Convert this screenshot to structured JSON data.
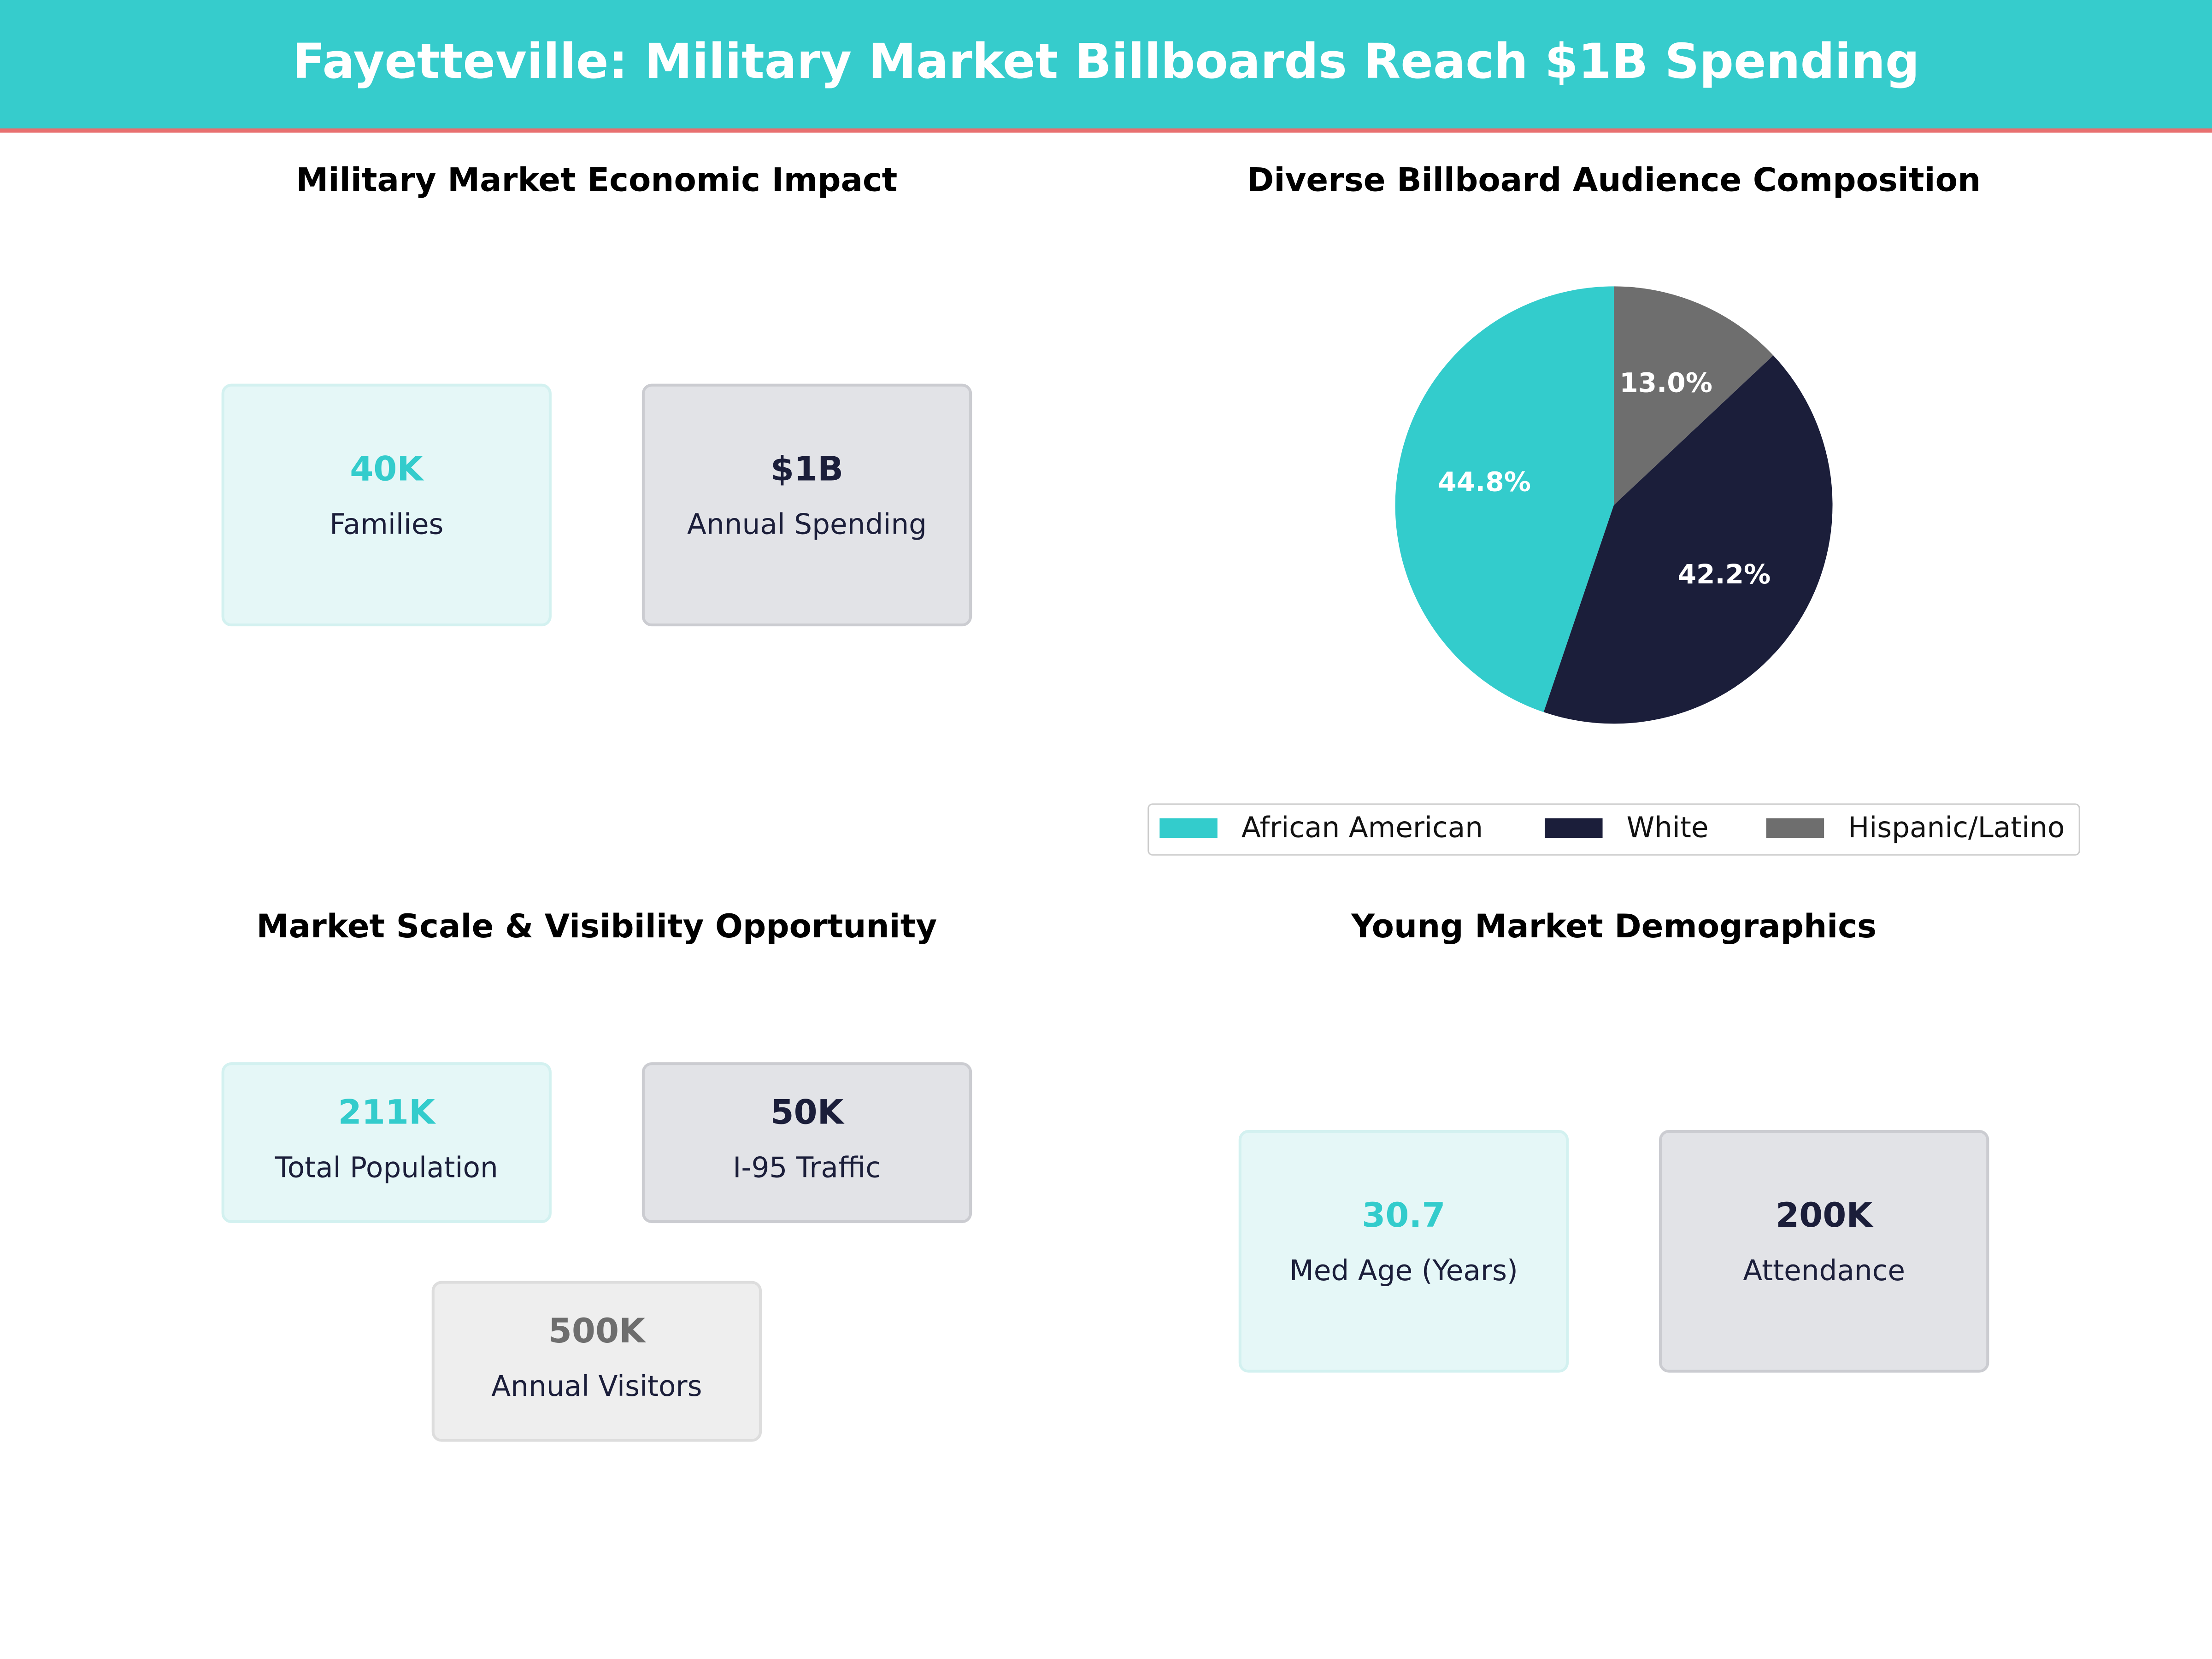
{
  "title": "Fayetteville: Military Market Billboards Reach $1B Spending",
  "chart_data": [
    {
      "type": "kpi",
      "title": "Military Market Economic Impact",
      "cards": [
        {
          "value": "40K",
          "label": "Families"
        },
        {
          "value": "$1B",
          "label": "Annual Spending"
        }
      ]
    },
    {
      "type": "pie",
      "title": "Diverse Billboard Audience Composition",
      "categories": [
        "African American",
        "White",
        "Hispanic/Latino"
      ],
      "values": [
        44.8,
        42.2,
        13.0
      ],
      "value_labels": [
        "44.8%",
        "42.2%",
        "13.0%"
      ],
      "colors": [
        "#33cccc",
        "#1b1e3a",
        "#6e6e6e"
      ],
      "legend": "bottom"
    },
    {
      "type": "kpi",
      "title": "Market Scale & Visibility Opportunity",
      "cards": [
        {
          "value": "211K",
          "label": "Total Population"
        },
        {
          "value": "50K",
          "label": "I-95 Traffic"
        },
        {
          "value": "500K",
          "label": "Annual Visitors"
        }
      ]
    },
    {
      "type": "kpi",
      "title": "Young Market Demographics",
      "cards": [
        {
          "value": "30.7",
          "label": "Med Age (Years)"
        },
        {
          "value": "200K",
          "label": "Attendance"
        }
      ]
    }
  ]
}
